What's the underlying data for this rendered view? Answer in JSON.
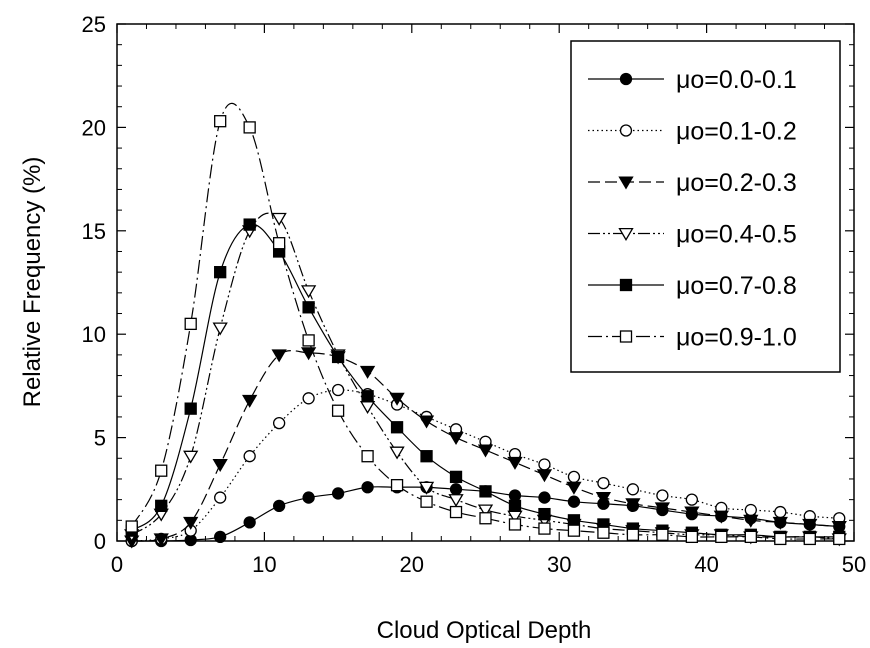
{
  "chart_data": {
    "type": "line",
    "title": "",
    "xlabel": "Cloud Optical Depth",
    "ylabel": "Relative Frequency (%)",
    "xlim": [
      0,
      50
    ],
    "ylim": [
      0,
      25
    ],
    "xticks": [
      0,
      10,
      20,
      30,
      40,
      50
    ],
    "yticks": [
      0,
      5,
      10,
      15,
      20,
      25
    ],
    "grid": false,
    "legend_position": "top-right",
    "x": [
      1,
      3,
      5,
      7,
      9,
      11,
      13,
      15,
      17,
      19,
      21,
      23,
      25,
      27,
      29,
      31,
      33,
      35,
      37,
      39,
      41,
      43,
      45,
      47,
      49
    ],
    "series": [
      {
        "name": "μo=0.0-0.1",
        "marker": "filled-circle",
        "dash": "solid",
        "values": [
          0.0,
          0.0,
          0.05,
          0.2,
          0.9,
          1.7,
          2.1,
          2.3,
          2.6,
          2.6,
          2.6,
          2.5,
          2.4,
          2.2,
          2.1,
          1.9,
          1.8,
          1.7,
          1.5,
          1.3,
          1.2,
          1.1,
          0.9,
          0.8,
          0.7
        ]
      },
      {
        "name": "μo=0.1-0.2",
        "marker": "open-circle",
        "dash": "dotted",
        "values": [
          0.0,
          0.1,
          0.5,
          2.1,
          4.1,
          5.7,
          6.9,
          7.3,
          7.1,
          6.6,
          6.0,
          5.4,
          4.8,
          4.2,
          3.7,
          3.1,
          2.8,
          2.5,
          2.2,
          2.0,
          1.6,
          1.5,
          1.4,
          1.2,
          1.1
        ]
      },
      {
        "name": "μo=0.2-0.3",
        "marker": "filled-triangle-down",
        "dash": "dashed",
        "values": [
          0.0,
          0.1,
          0.9,
          3.7,
          6.8,
          9.0,
          9.1,
          8.9,
          8.2,
          6.9,
          5.8,
          5.0,
          4.4,
          3.8,
          3.2,
          2.6,
          2.1,
          1.8,
          1.6,
          1.4,
          1.2,
          1.0,
          0.9,
          0.8,
          0.7
        ]
      },
      {
        "name": "μo=0.4-0.5",
        "marker": "open-triangle-down",
        "dash": "dash-dot-dot",
        "values": [
          0.3,
          1.3,
          4.1,
          10.3,
          15.0,
          15.6,
          12.1,
          9.0,
          6.5,
          4.3,
          2.6,
          2.0,
          1.5,
          1.2,
          1.0,
          0.8,
          0.6,
          0.5,
          0.4,
          0.3,
          0.3,
          0.2,
          0.2,
          0.2,
          0.1
        ]
      },
      {
        "name": "μo=0.7-0.8",
        "marker": "filled-square",
        "dash": "solid",
        "values": [
          0.5,
          1.7,
          6.4,
          13.0,
          15.3,
          14.0,
          11.3,
          8.9,
          7.0,
          5.5,
          4.1,
          3.1,
          2.4,
          1.7,
          1.3,
          1.0,
          0.8,
          0.6,
          0.5,
          0.4,
          0.3,
          0.3,
          0.2,
          0.2,
          0.2
        ]
      },
      {
        "name": "μo=0.9-1.0",
        "marker": "open-square",
        "dash": "dash-dot",
        "values": [
          0.7,
          3.4,
          10.5,
          20.3,
          20.0,
          14.4,
          9.7,
          6.3,
          4.1,
          2.7,
          1.9,
          1.4,
          1.1,
          0.8,
          0.6,
          0.5,
          0.4,
          0.3,
          0.3,
          0.2,
          0.2,
          0.2,
          0.1,
          0.1,
          0.1
        ]
      }
    ]
  }
}
